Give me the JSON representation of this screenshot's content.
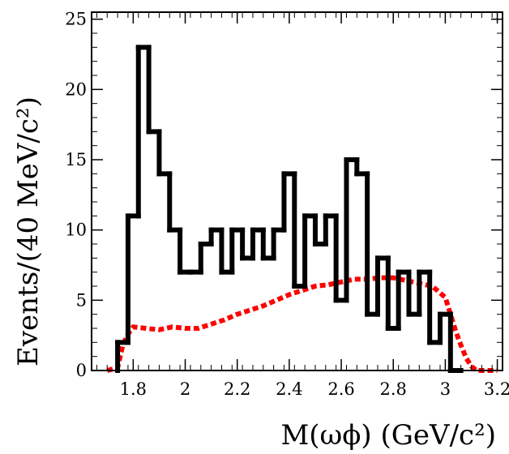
{
  "chart_data": {
    "type": "histogram",
    "title": "",
    "xlabel": "M(ωϕ) (GeV/c²)",
    "ylabel": "Events/(40 MeV/c²)",
    "xlim": [
      1.64,
      3.22
    ],
    "ylim": [
      0,
      25.5
    ],
    "xticks": [
      1.8,
      2,
      2.2,
      2.4,
      2.6,
      2.8,
      3,
      3.2
    ],
    "xtick_labels": [
      "1.8",
      "2",
      "2.2",
      "2.4",
      "2.6",
      "2.8",
      "3",
      "3.2"
    ],
    "yticks": [
      0,
      5,
      10,
      15,
      20,
      25
    ],
    "ytick_labels": [
      "0",
      "5",
      "10",
      "15",
      "20",
      "25"
    ],
    "bin_width": 0.04,
    "series": [
      {
        "style": "solid black histogram",
        "color": "#000000",
        "bin_lows": [
          1.74,
          1.78,
          1.82,
          1.86,
          1.9,
          1.94,
          1.98,
          2.02,
          2.06,
          2.1,
          2.14,
          2.18,
          2.22,
          2.26,
          2.3,
          2.34,
          2.38,
          2.42,
          2.46,
          2.5,
          2.54,
          2.58,
          2.62,
          2.66,
          2.7,
          2.74,
          2.78,
          2.82,
          2.86,
          2.9,
          2.94,
          2.98,
          3.02
        ],
        "values": [
          2,
          11,
          23,
          17,
          14,
          10,
          7,
          7,
          9,
          10,
          7,
          10,
          8,
          10,
          8,
          10,
          14,
          6,
          11,
          9,
          11,
          5,
          15,
          14,
          4,
          8,
          3,
          7,
          4,
          7,
          2,
          4,
          0
        ]
      },
      {
        "style": "dashed red curve",
        "color": "#ff0000",
        "x": [
          1.7,
          1.74,
          1.76,
          1.78,
          1.8,
          1.85,
          1.9,
          1.95,
          2.0,
          2.05,
          2.1,
          2.15,
          2.2,
          2.25,
          2.3,
          2.35,
          2.4,
          2.45,
          2.5,
          2.55,
          2.6,
          2.65,
          2.7,
          2.75,
          2.8,
          2.85,
          2.9,
          2.95,
          3.0,
          3.02,
          3.04,
          3.06,
          3.08,
          3.1,
          3.12,
          3.2
        ],
        "y": [
          0,
          0.2,
          1.8,
          2.6,
          3.1,
          3.0,
          2.9,
          3.1,
          3.0,
          3.0,
          3.3,
          3.6,
          4.0,
          4.3,
          4.6,
          5.0,
          5.4,
          5.7,
          6.0,
          6.1,
          6.3,
          6.5,
          6.5,
          6.6,
          6.6,
          6.4,
          6.2,
          6.0,
          5.2,
          4.0,
          2.8,
          1.8,
          0.9,
          0.3,
          0,
          0
        ]
      }
    ]
  }
}
